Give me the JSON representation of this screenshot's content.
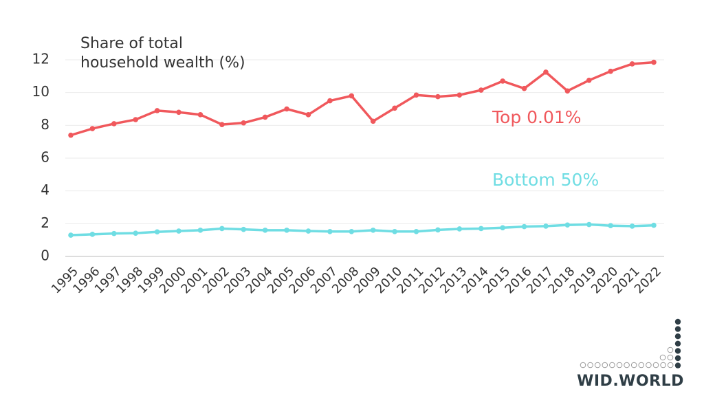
{
  "chart_data": {
    "type": "line",
    "title": "Share of total household wealth (%)",
    "x": [
      1995,
      1996,
      1997,
      1998,
      1999,
      2000,
      2001,
      2002,
      2003,
      2004,
      2005,
      2006,
      2007,
      2008,
      2009,
      2010,
      2011,
      2012,
      2013,
      2014,
      2015,
      2016,
      2017,
      2018,
      2019,
      2020,
      2021,
      2022
    ],
    "xlim": [
      1995,
      2022
    ],
    "ylim": [
      0,
      12
    ],
    "yticks": [
      0,
      2,
      4,
      6,
      8,
      10,
      12
    ],
    "grid": true,
    "series": [
      {
        "name": "Top 0.01%",
        "color": "#f0585c",
        "values": [
          7.4,
          7.8,
          8.1,
          8.35,
          8.9,
          8.8,
          8.65,
          8.05,
          8.15,
          8.5,
          9.0,
          8.65,
          9.5,
          9.8,
          8.25,
          9.05,
          9.85,
          9.75,
          9.85,
          10.15,
          10.7,
          10.25,
          11.25,
          10.1,
          10.75,
          11.3,
          11.75,
          11.85
        ]
      },
      {
        "name": "Bottom 50%",
        "color": "#6fdde3",
        "values": [
          1.3,
          1.35,
          1.4,
          1.42,
          1.5,
          1.55,
          1.6,
          1.7,
          1.65,
          1.6,
          1.6,
          1.55,
          1.52,
          1.52,
          1.6,
          1.52,
          1.52,
          1.62,
          1.68,
          1.7,
          1.75,
          1.82,
          1.85,
          1.92,
          1.95,
          1.88,
          1.85,
          1.9
        ]
      }
    ]
  },
  "logo": "WID.WORLD"
}
